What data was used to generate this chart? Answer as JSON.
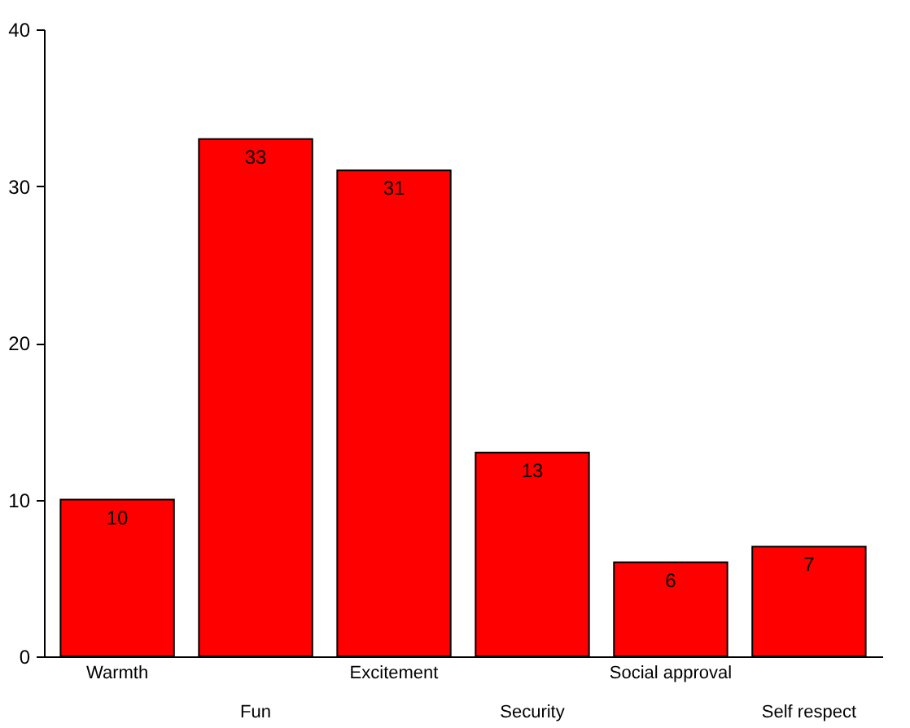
{
  "chart_data": {
    "type": "bar",
    "categories": [
      "Warmth",
      "Fun",
      "Excitement",
      "Security",
      "Social approval",
      "Self respect"
    ],
    "values": [
      10,
      33,
      31,
      13,
      6,
      7
    ],
    "color": "#ff0000",
    "ylim": [
      0,
      40
    ],
    "yticks": [
      0,
      10,
      20,
      30,
      40
    ],
    "grid": false,
    "data_labels": true
  }
}
